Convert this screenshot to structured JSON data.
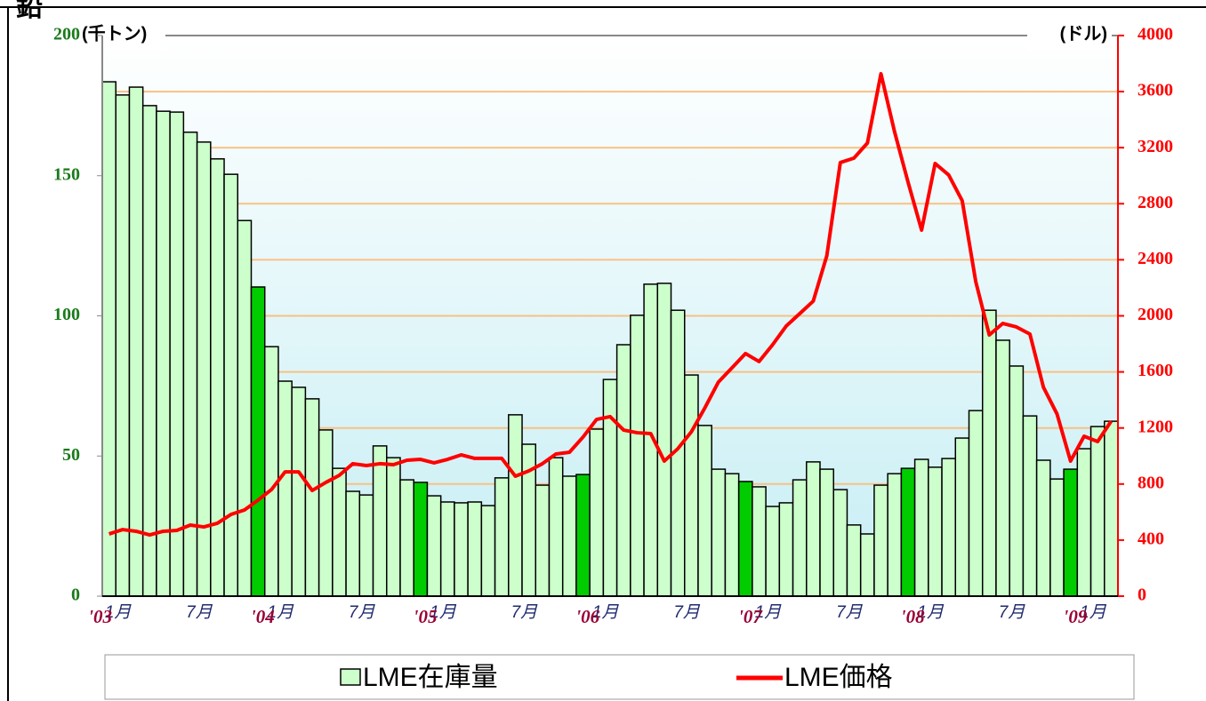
{
  "chart_data": {
    "type": "bar-line",
    "title": "鉛",
    "y_label": "(千トン)",
    "y2_label": "(ドル)",
    "categories": [
      "1月",
      null,
      null,
      null,
      null,
      null,
      "7月",
      null,
      null,
      null,
      null,
      null,
      "1月",
      null,
      null,
      null,
      null,
      null,
      "7月",
      null,
      null,
      null,
      null,
      null,
      "1月",
      null,
      null,
      null,
      null,
      null,
      "7月",
      null,
      null,
      null,
      null,
      null,
      "1月",
      null,
      null,
      null,
      null,
      null,
      "7月",
      null,
      null,
      null,
      null,
      null,
      "1月",
      null,
      null,
      null,
      null,
      null,
      "7月",
      null,
      null,
      null,
      null,
      null,
      "1月",
      null,
      null,
      null,
      null,
      null,
      "7月",
      null,
      null,
      null,
      null,
      null,
      "1月",
      null,
      null
    ],
    "year_labels": [
      "'03",
      null,
      null,
      null,
      null,
      null,
      null,
      null,
      null,
      null,
      null,
      null,
      "'04",
      null,
      null,
      null,
      null,
      null,
      null,
      null,
      null,
      null,
      null,
      null,
      "'05",
      null,
      null,
      null,
      null,
      null,
      null,
      null,
      null,
      null,
      null,
      null,
      "'06",
      null,
      null,
      null,
      null,
      null,
      null,
      null,
      null,
      null,
      null,
      null,
      "'07",
      null,
      null,
      null,
      null,
      null,
      null,
      null,
      null,
      null,
      null,
      null,
      "'08",
      null,
      null,
      null,
      null,
      null,
      null,
      null,
      null,
      null,
      null,
      null,
      "'09",
      null,
      null
    ],
    "series": [
      {
        "name": "LME在庫量",
        "type": "bar",
        "color": "#ccffcc",
        "highlight_color": "#00cc00",
        "highlighted": [
          false,
          false,
          false,
          false,
          false,
          false,
          false,
          false,
          false,
          false,
          false,
          true,
          false,
          false,
          false,
          false,
          false,
          false,
          false,
          false,
          false,
          false,
          false,
          true,
          false,
          false,
          false,
          false,
          false,
          false,
          false,
          false,
          false,
          false,
          false,
          true,
          false,
          false,
          false,
          false,
          false,
          false,
          false,
          false,
          false,
          false,
          false,
          true,
          false,
          false,
          false,
          false,
          false,
          false,
          false,
          false,
          false,
          false,
          false,
          true,
          false,
          false,
          false,
          false,
          false,
          false,
          false,
          false,
          false,
          false,
          false,
          true,
          false,
          false,
          false
        ],
        "values": [
          183.5,
          178.8,
          181.6,
          175,
          173,
          172.7,
          165.5,
          162,
          156,
          150.5,
          134,
          110.3,
          89,
          76.7,
          74.5,
          70.4,
          59.3,
          45.6,
          37.4,
          36.1,
          53.6,
          49.4,
          41.5,
          40.6,
          35.8,
          33.6,
          33.3,
          33.6,
          32.3,
          42.2,
          64.7,
          54.2,
          39.6,
          49.4,
          42.8,
          43.4,
          59.6,
          77.3,
          89.7,
          100.2,
          111.3,
          111.6,
          102,
          78.9,
          60.9,
          45.3,
          43.7,
          40.9,
          39,
          32,
          33.3,
          41.5,
          47.9,
          45.3,
          38,
          25.4,
          22.2,
          39.6,
          43.7,
          45.6,
          48.8,
          46,
          49.1,
          56.4,
          66.2,
          102,
          91.3,
          82.1,
          64.3,
          48.5,
          41.8,
          45.3,
          52.6,
          60.5,
          62.4
        ]
      },
      {
        "name": "LME価格",
        "type": "line",
        "color": "#ff0000",
        "axis": "y2",
        "values": [
          444,
          475,
          463,
          437,
          463,
          469,
          507,
          494,
          520,
          583,
          615,
          685,
          761,
          887,
          887,
          754,
          811,
          862,
          945,
          932,
          945,
          938,
          970,
          976,
          951,
          976,
          1008,
          983,
          983,
          983,
          856,
          894,
          945,
          1014,
          1027,
          1135,
          1261,
          1281,
          1185,
          1166,
          1160,
          964,
          1052,
          1173,
          1344,
          1528,
          1629,
          1731,
          1674,
          1794,
          1927,
          2016,
          2105,
          2428,
          3094,
          3125,
          3233,
          3727,
          3315,
          2954,
          2612,
          3087,
          3005,
          2821,
          2244,
          1864,
          1946,
          1921,
          1870,
          1490,
          1300,
          964,
          1141,
          1103,
          1249
        ]
      }
    ],
    "ylim": [
      0,
      200
    ],
    "yticks": [
      0,
      50,
      100,
      150,
      200
    ],
    "y2lim": [
      0,
      4000
    ],
    "y2ticks": [
      0,
      400,
      800,
      1200,
      1600,
      2000,
      2400,
      2800,
      3200,
      3600,
      4000
    ],
    "grid": true,
    "grid_color": "#f7c183"
  }
}
